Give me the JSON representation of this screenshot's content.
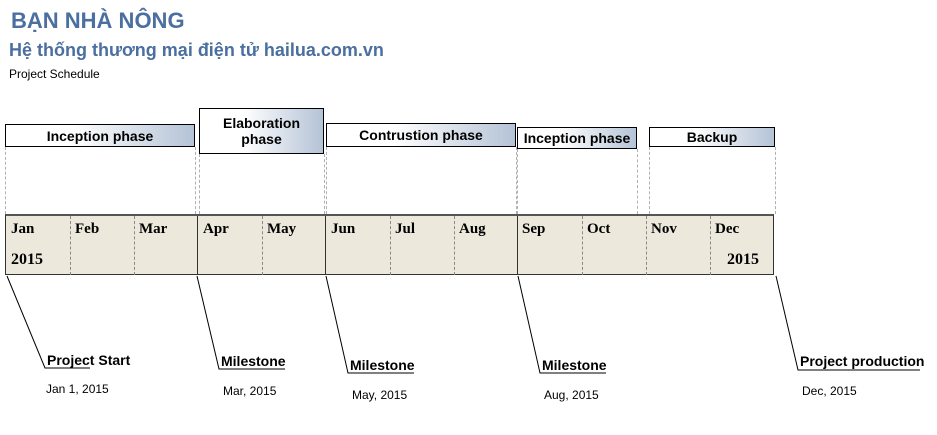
{
  "header": {
    "title": "BẠN NHÀ NÔNG",
    "subtitle": "Hệ thống thương mại điện tử hailua.com.vn",
    "doc_label": "Project Schedule"
  },
  "phases": [
    {
      "label": "Inception phase"
    },
    {
      "label_line1": "Elaboration",
      "label_line2": "phase"
    },
    {
      "label": "Contrustion phase"
    },
    {
      "label": "Inception phase"
    },
    {
      "label": "Backup"
    }
  ],
  "timeline": {
    "months": [
      "Jan",
      "Feb",
      "Mar",
      "Apr",
      "May",
      "Jun",
      "Jul",
      "Aug",
      "Sep",
      "Oct",
      "Nov",
      "Dec"
    ],
    "start_year": "2015",
    "end_year": "2015"
  },
  "milestones": [
    {
      "label": "Project Start",
      "date": "Jan 1, 2015"
    },
    {
      "label": "Milestone",
      "date": "Mar, 2015"
    },
    {
      "label": "Milestone",
      "date": "May, 2015"
    },
    {
      "label": "Milestone",
      "date": "Aug, 2015"
    },
    {
      "label": "Project production",
      "date": "Dec, 2015"
    }
  ],
  "colors": {
    "title": "#4a6fa0",
    "phase_gradient_end": "#b4c3d6",
    "band_fill": "#ece9dc"
  }
}
